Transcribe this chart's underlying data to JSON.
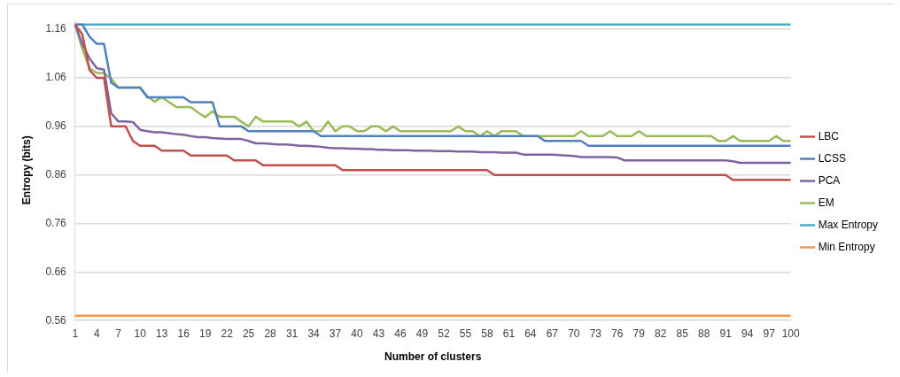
{
  "chart_data": {
    "type": "line",
    "xlabel": "Number of clusters",
    "ylabel": "Entropy (bits)",
    "categories": [
      "1",
      null,
      null,
      "4",
      null,
      null,
      "7",
      null,
      null,
      "10",
      null,
      null,
      "13",
      null,
      null,
      "16",
      null,
      null,
      "19",
      null,
      null,
      "22",
      null,
      null,
      "25",
      null,
      null,
      "28",
      null,
      null,
      "31",
      null,
      null,
      "34",
      null,
      null,
      "37",
      null,
      null,
      "40",
      null,
      null,
      "43",
      null,
      null,
      "46",
      null,
      null,
      "49",
      null,
      null,
      "52",
      null,
      null,
      "55",
      null,
      null,
      "58",
      null,
      null,
      "61",
      null,
      null,
      "64",
      null,
      null,
      "67",
      null,
      null,
      "70",
      null,
      null,
      "73",
      null,
      null,
      "76",
      null,
      null,
      "79",
      null,
      null,
      "82",
      null,
      null,
      "85",
      null,
      null,
      "88",
      null,
      null,
      "91",
      null,
      null,
      "94",
      null,
      null,
      "97",
      null,
      null,
      "100"
    ],
    "ylim": [
      0.56,
      1.18
    ],
    "yticks": [
      0.56,
      0.66,
      0.76,
      0.86,
      0.96,
      1.06,
      1.16
    ],
    "grid": "y",
    "legend": "right",
    "marker": "none",
    "line_style": "solid",
    "series": [
      {
        "name": "LBC",
        "color": "#c0504d",
        "values": [
          1.17,
          1.15,
          1.076,
          1.06,
          1.06,
          0.96,
          0.96,
          0.96,
          0.93,
          0.92,
          0.92,
          0.92,
          0.91,
          0.91,
          0.91,
          0.91,
          0.9,
          0.9,
          0.9,
          0.9,
          0.9,
          0.9,
          0.89,
          0.89,
          0.89,
          0.89,
          0.88,
          0.88,
          0.88,
          0.88,
          0.88,
          0.88,
          0.88,
          0.88,
          0.88,
          0.88,
          0.88,
          0.87,
          0.87,
          0.87,
          0.87,
          0.87,
          0.87,
          0.87,
          0.87,
          0.87,
          0.87,
          0.87,
          0.87,
          0.87,
          0.87,
          0.87,
          0.87,
          0.87,
          0.87,
          0.87,
          0.87,
          0.87,
          0.86,
          0.86,
          0.86,
          0.86,
          0.86,
          0.86,
          0.86,
          0.86,
          0.86,
          0.86,
          0.86,
          0.86,
          0.86,
          0.86,
          0.86,
          0.86,
          0.86,
          0.86,
          0.86,
          0.86,
          0.86,
          0.86,
          0.86,
          0.86,
          0.86,
          0.86,
          0.86,
          0.86,
          0.86,
          0.86,
          0.86,
          0.86,
          0.86,
          0.85,
          0.85,
          0.85,
          0.85,
          0.85,
          0.85,
          0.85,
          0.85,
          0.85
        ]
      },
      {
        "name": "LCSS",
        "color": "#4f81bd",
        "values": [
          1.17,
          1.17,
          1.145,
          1.13,
          1.13,
          1.05,
          1.04,
          1.04,
          1.04,
          1.04,
          1.02,
          1.02,
          1.02,
          1.02,
          1.02,
          1.02,
          1.01,
          1.01,
          1.01,
          1.01,
          0.96,
          0.96,
          0.96,
          0.96,
          0.95,
          0.95,
          0.95,
          0.95,
          0.95,
          0.95,
          0.95,
          0.95,
          0.95,
          0.95,
          0.94,
          0.94,
          0.94,
          0.94,
          0.94,
          0.94,
          0.94,
          0.94,
          0.94,
          0.94,
          0.94,
          0.94,
          0.94,
          0.94,
          0.94,
          0.94,
          0.94,
          0.94,
          0.94,
          0.94,
          0.94,
          0.94,
          0.94,
          0.94,
          0.94,
          0.94,
          0.94,
          0.94,
          0.94,
          0.94,
          0.94,
          0.93,
          0.93,
          0.93,
          0.93,
          0.93,
          0.93,
          0.92,
          0.92,
          0.92,
          0.92,
          0.92,
          0.92,
          0.92,
          0.92,
          0.92,
          0.92,
          0.92,
          0.92,
          0.92,
          0.92,
          0.92,
          0.92,
          0.92,
          0.92,
          0.92,
          0.92,
          0.92,
          0.92,
          0.92,
          0.92,
          0.92,
          0.92,
          0.92,
          0.92,
          0.92
        ]
      },
      {
        "name": "PCA",
        "color": "#8064a2",
        "values": [
          1.17,
          1.13,
          1.1,
          1.08,
          1.077,
          0.987,
          0.97,
          0.97,
          0.969,
          0.953,
          0.95,
          0.948,
          0.948,
          0.946,
          0.944,
          0.943,
          0.94,
          0.938,
          0.938,
          0.936,
          0.935,
          0.934,
          0.934,
          0.934,
          0.93,
          0.925,
          0.925,
          0.924,
          0.923,
          0.923,
          0.922,
          0.92,
          0.92,
          0.919,
          0.918,
          0.916,
          0.915,
          0.915,
          0.914,
          0.914,
          0.913,
          0.913,
          0.912,
          0.912,
          0.911,
          0.911,
          0.911,
          0.91,
          0.91,
          0.91,
          0.909,
          0.909,
          0.909,
          0.908,
          0.908,
          0.908,
          0.907,
          0.907,
          0.907,
          0.906,
          0.906,
          0.906,
          0.902,
          0.902,
          0.902,
          0.902,
          0.902,
          0.901,
          0.9,
          0.899,
          0.897,
          0.897,
          0.897,
          0.897,
          0.897,
          0.896,
          0.89,
          0.89,
          0.89,
          0.89,
          0.89,
          0.89,
          0.89,
          0.89,
          0.89,
          0.89,
          0.89,
          0.89,
          0.89,
          0.89,
          0.89,
          0.888,
          0.885,
          0.885,
          0.885,
          0.885,
          0.885,
          0.885,
          0.885,
          0.885
        ]
      },
      {
        "name": "EM",
        "color": "#9bbb59",
        "values": [
          1.17,
          1.12,
          1.08,
          1.07,
          1.07,
          1.058,
          1.04,
          1.04,
          1.04,
          1.04,
          1.022,
          1.011,
          1.02,
          1.01,
          1.0,
          1.0,
          1.0,
          0.989,
          0.979,
          0.991,
          0.98,
          0.98,
          0.98,
          0.97,
          0.96,
          0.98,
          0.97,
          0.97,
          0.97,
          0.97,
          0.97,
          0.96,
          0.97,
          0.95,
          0.95,
          0.97,
          0.95,
          0.96,
          0.96,
          0.95,
          0.95,
          0.96,
          0.96,
          0.95,
          0.96,
          0.95,
          0.95,
          0.95,
          0.95,
          0.95,
          0.95,
          0.95,
          0.95,
          0.96,
          0.95,
          0.95,
          0.94,
          0.95,
          0.94,
          0.95,
          0.95,
          0.95,
          0.94,
          0.94,
          0.94,
          0.94,
          0.94,
          0.94,
          0.94,
          0.94,
          0.95,
          0.94,
          0.94,
          0.94,
          0.95,
          0.94,
          0.94,
          0.94,
          0.95,
          0.94,
          0.94,
          0.94,
          0.94,
          0.94,
          0.94,
          0.94,
          0.94,
          0.94,
          0.94,
          0.93,
          0.93,
          0.94,
          0.93,
          0.93,
          0.93,
          0.93,
          0.93,
          0.94,
          0.93,
          0.93
        ]
      },
      {
        "name": "Max Entropy",
        "color": "#4bacc6",
        "values": [
          1.17,
          1.17,
          1.17,
          1.17,
          1.17,
          1.17,
          1.17,
          1.17,
          1.17,
          1.17,
          1.17,
          1.17,
          1.17,
          1.17,
          1.17,
          1.17,
          1.17,
          1.17,
          1.17,
          1.17,
          1.17,
          1.17,
          1.17,
          1.17,
          1.17,
          1.17,
          1.17,
          1.17,
          1.17,
          1.17,
          1.17,
          1.17,
          1.17,
          1.17,
          1.17,
          1.17,
          1.17,
          1.17,
          1.17,
          1.17,
          1.17,
          1.17,
          1.17,
          1.17,
          1.17,
          1.17,
          1.17,
          1.17,
          1.17,
          1.17,
          1.17,
          1.17,
          1.17,
          1.17,
          1.17,
          1.17,
          1.17,
          1.17,
          1.17,
          1.17,
          1.17,
          1.17,
          1.17,
          1.17,
          1.17,
          1.17,
          1.17,
          1.17,
          1.17,
          1.17,
          1.17,
          1.17,
          1.17,
          1.17,
          1.17,
          1.17,
          1.17,
          1.17,
          1.17,
          1.17,
          1.17,
          1.17,
          1.17,
          1.17,
          1.17,
          1.17,
          1.17,
          1.17,
          1.17,
          1.17,
          1.17,
          1.17,
          1.17,
          1.17,
          1.17,
          1.17,
          1.17,
          1.17,
          1.17,
          1.17
        ]
      },
      {
        "name": "Min Entropy",
        "color": "#f79646",
        "values": [
          0.57,
          0.57,
          0.57,
          0.57,
          0.57,
          0.57,
          0.57,
          0.57,
          0.57,
          0.57,
          0.57,
          0.57,
          0.57,
          0.57,
          0.57,
          0.57,
          0.57,
          0.57,
          0.57,
          0.57,
          0.57,
          0.57,
          0.57,
          0.57,
          0.57,
          0.57,
          0.57,
          0.57,
          0.57,
          0.57,
          0.57,
          0.57,
          0.57,
          0.57,
          0.57,
          0.57,
          0.57,
          0.57,
          0.57,
          0.57,
          0.57,
          0.57,
          0.57,
          0.57,
          0.57,
          0.57,
          0.57,
          0.57,
          0.57,
          0.57,
          0.57,
          0.57,
          0.57,
          0.57,
          0.57,
          0.57,
          0.57,
          0.57,
          0.57,
          0.57,
          0.57,
          0.57,
          0.57,
          0.57,
          0.57,
          0.57,
          0.57,
          0.57,
          0.57,
          0.57,
          0.57,
          0.57,
          0.57,
          0.57,
          0.57,
          0.57,
          0.57,
          0.57,
          0.57,
          0.57,
          0.57,
          0.57,
          0.57,
          0.57,
          0.57,
          0.57,
          0.57,
          0.57,
          0.57,
          0.57,
          0.57,
          0.57,
          0.57,
          0.57,
          0.57,
          0.57,
          0.57,
          0.57,
          0.57,
          0.57
        ]
      }
    ]
  }
}
